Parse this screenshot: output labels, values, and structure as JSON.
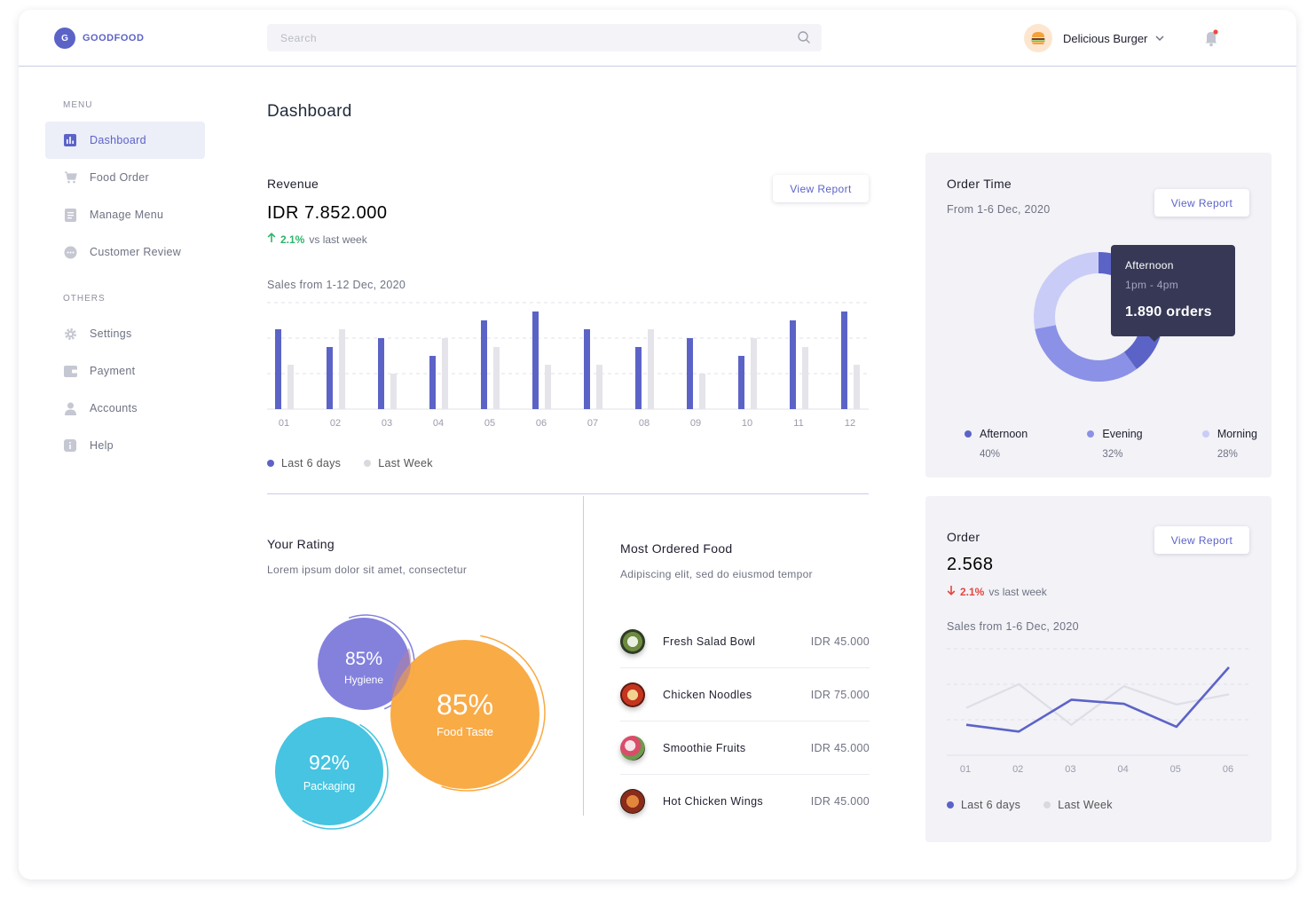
{
  "app": {
    "logo_letter": "G",
    "logo_text": "GOODFOOD"
  },
  "search": {
    "placeholder": "Search"
  },
  "user": {
    "name": "Delicious Burger",
    "avatar_icon": "burger-icon"
  },
  "sidebar": {
    "menu_title": "MENU",
    "menu_items": [
      {
        "label": "Dashboard",
        "icon": "bar-chart-icon",
        "active": true
      },
      {
        "label": "Food Order",
        "icon": "cart-icon"
      },
      {
        "label": "Manage Menu",
        "icon": "document-icon"
      },
      {
        "label": "Customer Review",
        "icon": "chat-icon"
      }
    ],
    "others_title": "OTHERS",
    "other_items": [
      {
        "label": "Settings",
        "icon": "gear-icon"
      },
      {
        "label": "Payment",
        "icon": "wallet-icon"
      },
      {
        "label": "Accounts",
        "icon": "user-icon"
      },
      {
        "label": "Help",
        "icon": "info-icon"
      }
    ]
  },
  "page": {
    "title": "Dashboard"
  },
  "revenue": {
    "title": "Revenue",
    "amount": "IDR 7.852.000",
    "delta": "2.1%",
    "delta_text": "vs last week",
    "sales_range": "Sales from 1-12 Dec, 2020",
    "view_report": "View Report",
    "legend_current": "Last 6 days",
    "legend_previous": "Last Week"
  },
  "rating": {
    "title": "Your Rating",
    "subtitle": "Lorem ipsum dolor sit amet, consectetur",
    "hygiene_value": "85%",
    "hygiene_label": "Hygiene",
    "taste_value": "85%",
    "taste_label": "Food Taste",
    "packaging_value": "92%",
    "packaging_label": "Packaging"
  },
  "most_ordered": {
    "title": "Most Ordered Food",
    "subtitle": "Adipiscing elit, sed do eiusmod tempor",
    "items": [
      {
        "name": "Fresh Salad Bowl",
        "price": "IDR 45.000"
      },
      {
        "name": "Chicken Noodles",
        "price": "IDR 75.000"
      },
      {
        "name": "Smoothie Fruits",
        "price": "IDR 45.000"
      },
      {
        "name": "Hot Chicken Wings",
        "price": "IDR 45.000"
      }
    ]
  },
  "order_time": {
    "title": "Order Time",
    "subtitle": "From 1-6 Dec, 2020",
    "view_report": "View Report",
    "tooltip_title": "Afternoon",
    "tooltip_range": "1pm - 4pm",
    "tooltip_value": "1.890 orders",
    "legend": [
      {
        "label": "Afternoon",
        "value": "40%",
        "color": "#5c63c7"
      },
      {
        "label": "Evening",
        "value": "32%",
        "color": "#8a91e6"
      },
      {
        "label": "Morning",
        "value": "28%",
        "color": "#c9ccf6"
      }
    ]
  },
  "order": {
    "title": "Order",
    "amount": "2.568",
    "delta": "2.1%",
    "delta_text": "vs last week",
    "sales_range": "Sales from 1-6 Dec, 2020",
    "view_report": "View Report",
    "legend_current": "Last 6 days",
    "legend_previous": "Last Week"
  },
  "colors": {
    "accent": "#5c63c7",
    "orange": "#f9a942",
    "cyan": "#46c4e1",
    "purple": "#8481dd",
    "up": "#2eb66b",
    "down": "#e5453d"
  },
  "chart_data": [
    {
      "type": "bar",
      "categories": [
        "01",
        "02",
        "03",
        "04",
        "05",
        "06",
        "07",
        "08",
        "09",
        "10",
        "11",
        "12"
      ],
      "series": [
        {
          "name": "Last 6 days",
          "values": [
            90,
            70,
            80,
            60,
            100,
            110,
            90,
            70,
            80,
            60,
            100,
            110
          ]
        },
        {
          "name": "Last Week",
          "values": [
            50,
            90,
            40,
            80,
            70,
            50,
            50,
            90,
            40,
            80,
            70,
            50
          ]
        }
      ],
      "ylim": [
        0,
        120
      ]
    },
    {
      "type": "pie",
      "categories": [
        "Afternoon",
        "Evening",
        "Morning"
      ],
      "values": [
        40,
        32,
        28
      ]
    },
    {
      "type": "line",
      "categories": [
        "01",
        "02",
        "03",
        "04",
        "05",
        "06"
      ],
      "series": [
        {
          "name": "Last 6 days",
          "values": [
            45,
            35,
            82,
            76,
            42,
            130
          ]
        },
        {
          "name": "Last Week",
          "values": [
            70,
            105,
            45,
            102,
            75,
            90
          ]
        }
      ],
      "ylim": [
        0,
        160
      ]
    }
  ]
}
